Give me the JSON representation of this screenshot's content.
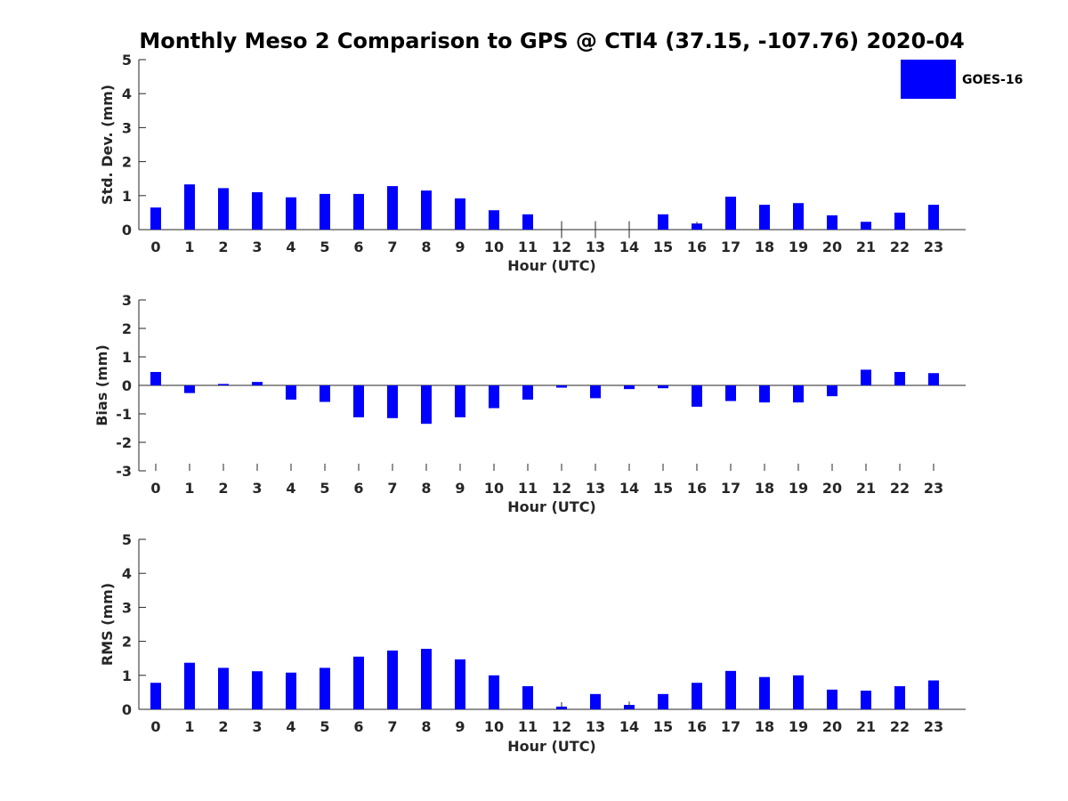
{
  "chart_data": {
    "title": "Monthly Meso 2 Comparison to GPS @ CTI4 (37.15, -107.76) 2020-04",
    "colors": {
      "bar": "#0000ff",
      "axis": "#262626"
    },
    "legend": {
      "label": "GOES-16",
      "placement": "top-right"
    },
    "panels": [
      {
        "type": "bar",
        "name": "std-dev",
        "ylabel": "Std. Dev. (mm)",
        "xlabel": "Hour (UTC)",
        "ylim": [
          0,
          5
        ],
        "yticks": [
          0,
          1,
          2,
          3,
          4,
          5
        ],
        "categories": [
          "0",
          "1",
          "2",
          "3",
          "4",
          "5",
          "6",
          "7",
          "8",
          "9",
          "10",
          "11",
          "12",
          "13",
          "14",
          "15",
          "16",
          "17",
          "18",
          "19",
          "20",
          "21",
          "22",
          "23"
        ],
        "values": [
          0.65,
          1.33,
          1.22,
          1.1,
          0.95,
          1.05,
          1.05,
          1.28,
          1.15,
          0.92,
          0.57,
          0.45,
          0.0,
          0.0,
          0.0,
          0.45,
          0.18,
          0.97,
          0.73,
          0.78,
          0.42,
          0.23,
          0.5,
          0.73
        ],
        "errors": [
          0,
          0,
          0,
          0,
          0,
          0,
          0,
          0,
          0,
          0,
          0,
          0,
          0.25,
          0.25,
          0.25,
          0,
          0.05,
          0,
          0,
          0,
          0,
          0,
          0,
          0
        ]
      },
      {
        "type": "bar",
        "name": "bias",
        "ylabel": "Bias (mm)",
        "xlabel": "Hour (UTC)",
        "ylim": [
          -3,
          3
        ],
        "yticks": [
          -3,
          -2,
          -1,
          0,
          1,
          2,
          3
        ],
        "categories": [
          "0",
          "1",
          "2",
          "3",
          "4",
          "5",
          "6",
          "7",
          "8",
          "9",
          "10",
          "11",
          "12",
          "13",
          "14",
          "15",
          "16",
          "17",
          "18",
          "19",
          "20",
          "21",
          "22",
          "23"
        ],
        "values": [
          0.47,
          -0.27,
          0.05,
          0.12,
          -0.5,
          -0.58,
          -1.12,
          -1.15,
          -1.35,
          -1.12,
          -0.8,
          -0.5,
          -0.08,
          -0.45,
          -0.13,
          -0.1,
          -0.75,
          -0.55,
          -0.6,
          -0.6,
          -0.38,
          0.55,
          0.47,
          0.43
        ],
        "errors": [
          0,
          0,
          0,
          0,
          0,
          0,
          0,
          0,
          0,
          0,
          0,
          0,
          0,
          0,
          0,
          0,
          0,
          0,
          0,
          0,
          0,
          0,
          0,
          0
        ]
      },
      {
        "type": "bar",
        "name": "rms",
        "ylabel": "RMS (mm)",
        "xlabel": "Hour (UTC)",
        "ylim": [
          0,
          5
        ],
        "yticks": [
          0,
          1,
          2,
          3,
          4,
          5
        ],
        "categories": [
          "0",
          "1",
          "2",
          "3",
          "4",
          "5",
          "6",
          "7",
          "8",
          "9",
          "10",
          "11",
          "12",
          "13",
          "14",
          "15",
          "16",
          "17",
          "18",
          "19",
          "20",
          "21",
          "22",
          "23"
        ],
        "values": [
          0.78,
          1.37,
          1.22,
          1.12,
          1.08,
          1.22,
          1.55,
          1.73,
          1.78,
          1.47,
          1.0,
          0.68,
          0.08,
          0.45,
          0.13,
          0.45,
          0.78,
          1.13,
          0.95,
          1.0,
          0.58,
          0.55,
          0.68,
          0.85
        ],
        "errors": [
          0,
          0,
          0,
          0,
          0,
          0,
          0,
          0,
          0,
          0,
          0,
          0,
          0.05,
          0,
          0.1,
          0,
          0,
          0,
          0,
          0,
          0,
          0,
          0,
          0
        ]
      }
    ]
  }
}
